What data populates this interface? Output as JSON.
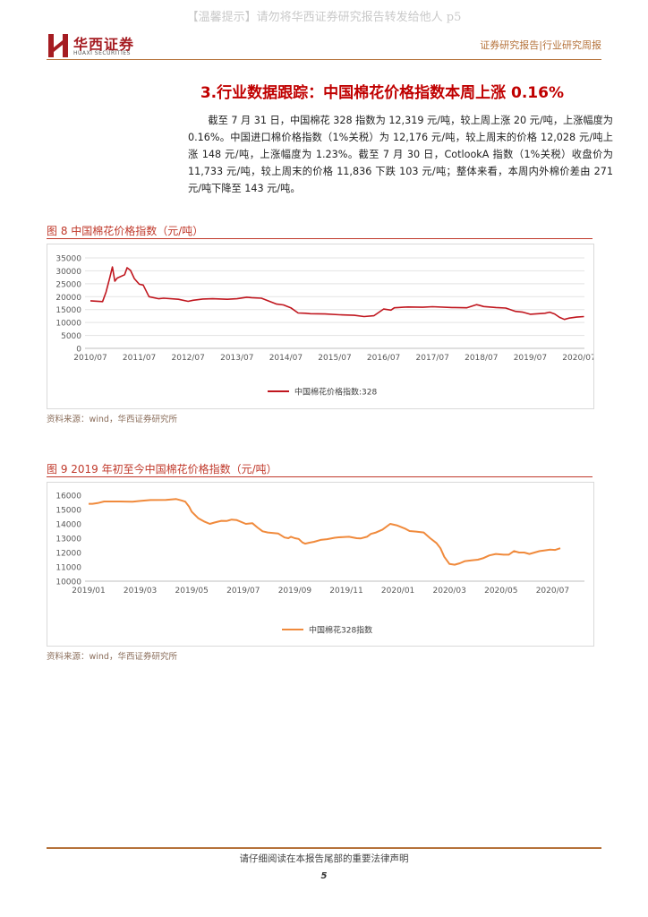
{
  "watermark": "【温馨提示】请勿将华西证券研究报告转发给他人 p5",
  "header": {
    "company_name": "华西证券",
    "company_sub": "HUAXI SECURITIES",
    "report_type": "证券研究报告|行业研究周报"
  },
  "section": {
    "title": "3.行业数据跟踪：中国棉花价格指数本周上涨 0.16%",
    "paragraph": "截至 7 月 31 日，中国棉花 328 指数为 12,319 元/吨，较上周上涨 20 元/吨，上涨幅度为 0.16%。中国进口棉价格指数（1%关税）为 12,176 元/吨，较上周末的价格 12,028 元/吨上涨 148 元/吨，上涨幅度为 1.23%。截至 7 月 30 日，CotlookA 指数（1%关税）收盘价为 11,733 元/吨，较上周末的价格 11,836 下跌 103 元/吨；整体来看，本周内外棉价差由 271 元/吨下降至 143 元/吨。"
  },
  "figure8": {
    "title": "图 8 中国棉花价格指数（元/吨）",
    "source": "资料来源：wind，华西证券研究所"
  },
  "figure9": {
    "title": "图 9 2019 年初至今中国棉花价格指数（元/吨）",
    "source": "资料来源：wind，华西证券研究所"
  },
  "footer": {
    "disclaimer": "请仔细阅读在本报告尾部的重要法律声明",
    "page": "5"
  },
  "colors": {
    "brand": "#a51c22",
    "chart1_line": "#c0161e",
    "chart2_line": "#f08a3c"
  },
  "chart_data": [
    {
      "type": "line",
      "x_tick_labels": [
        "2010/07",
        "2011/07",
        "2012/07",
        "2013/07",
        "2014/07",
        "2015/07",
        "2016/07",
        "2017/07",
        "2018/07",
        "2019/07",
        "2020/07"
      ],
      "y_tick_labels": [
        "0",
        "5000",
        "10000",
        "15000",
        "20000",
        "25000",
        "30000",
        "35000"
      ],
      "ylim": [
        0,
        35000
      ],
      "grid": true,
      "legend": "bottom",
      "series": [
        {
          "name": "中国棉花价格指数:328",
          "x": [
            2010.5,
            2010.75,
            2010.82,
            2010.9,
            2010.95,
            2011.0,
            2011.05,
            2011.2,
            2011.25,
            2011.32,
            2011.4,
            2011.5,
            2011.58,
            2011.7,
            2011.9,
            2012.0,
            2012.3,
            2012.5,
            2012.6,
            2012.8,
            2013.0,
            2013.3,
            2013.5,
            2013.7,
            2013.8,
            2014.0,
            2014.3,
            2014.45,
            2014.6,
            2014.75,
            2014.9,
            2015.0,
            2015.3,
            2015.6,
            2015.9,
            2016.1,
            2016.3,
            2016.5,
            2016.65,
            2016.72,
            2016.8,
            2016.9,
            2017.0,
            2017.3,
            2017.5,
            2017.9,
            2018.2,
            2018.4,
            2018.45,
            2018.55,
            2018.8,
            2019.0,
            2019.2,
            2019.35,
            2019.5,
            2019.8,
            2019.9,
            2020.0,
            2020.1,
            2020.2,
            2020.3,
            2020.45,
            2020.6
          ],
          "y": [
            18400,
            18100,
            21800,
            27500,
            31500,
            26000,
            27200,
            28500,
            31200,
            30200,
            27000,
            24800,
            24500,
            20000,
            19200,
            19400,
            19000,
            18200,
            18600,
            19100,
            19200,
            19000,
            19200,
            19800,
            19600,
            19400,
            17200,
            16800,
            15700,
            13700,
            13600,
            13400,
            13300,
            13000,
            12800,
            12300,
            12600,
            15200,
            14800,
            15700,
            15800,
            15900,
            16000,
            15900,
            16100,
            15800,
            15700,
            16900,
            16700,
            16200,
            15800,
            15600,
            14300,
            14000,
            13200,
            13600,
            14000,
            13300,
            12000,
            11200,
            11700,
            12100,
            12300
          ]
        }
      ]
    },
    {
      "type": "line",
      "x_tick_labels": [
        "2019/01",
        "2019/03",
        "2019/05",
        "2019/07",
        "2019/09",
        "2019/11",
        "2020/01",
        "2020/03",
        "2020/05",
        "2020/07"
      ],
      "y_tick_labels": [
        "10000",
        "11000",
        "12000",
        "13000",
        "14000",
        "15000",
        "16000"
      ],
      "ylim": [
        10000,
        16000
      ],
      "grid": false,
      "legend": "bottom",
      "series": [
        {
          "name": "中国棉花328指数",
          "x": [
            0,
            0.15,
            0.35,
            0.6,
            1.2,
            1.7,
            2.0,
            2.4,
            3.0,
            3.4,
            3.6,
            3.75,
            3.9,
            4.0,
            4.25,
            4.5,
            4.7,
            4.9,
            5.15,
            5.35,
            5.55,
            5.75,
            6.1,
            6.35,
            6.55,
            6.75,
            6.95,
            7.35,
            7.6,
            7.75,
            7.85,
            8.0,
            8.15,
            8.3,
            8.4,
            8.55,
            8.75,
            9.0,
            9.25,
            9.55,
            9.7,
            10.1,
            10.4,
            10.55,
            10.8,
            10.95,
            11.15,
            11.4,
            11.7,
            11.95,
            12.3,
            12.45,
            12.7,
            13.0,
            13.25,
            13.5,
            13.65,
            13.8,
            14.0,
            14.2,
            14.4,
            14.6,
            14.85,
            15.1,
            15.3,
            15.55,
            15.8,
            16.1,
            16.3,
            16.5,
            16.7,
            16.9,
            17.1,
            17.3,
            17.5,
            17.7,
            17.9,
            18.1,
            18.3
          ],
          "y": [
            15400,
            15400,
            15450,
            15560,
            15560,
            15550,
            15600,
            15660,
            15670,
            15730,
            15640,
            15550,
            15200,
            14850,
            14400,
            14150,
            14000,
            14100,
            14210,
            14200,
            14300,
            14260,
            14000,
            14050,
            13750,
            13480,
            13400,
            13330,
            13050,
            13000,
            13100,
            13000,
            12950,
            12700,
            12620,
            12680,
            12750,
            12880,
            12930,
            13030,
            13060,
            13100,
            13000,
            12980,
            13100,
            13300,
            13400,
            13600,
            14000,
            13900,
            13650,
            13500,
            13460,
            13400,
            13000,
            12650,
            12300,
            11700,
            11200,
            11150,
            11250,
            11400,
            11450,
            11500,
            11600,
            11800,
            11900,
            11850,
            11850,
            12100,
            12000,
            12000,
            11900,
            12000,
            12100,
            12150,
            12200,
            12180,
            12300
          ]
        }
      ]
    }
  ]
}
